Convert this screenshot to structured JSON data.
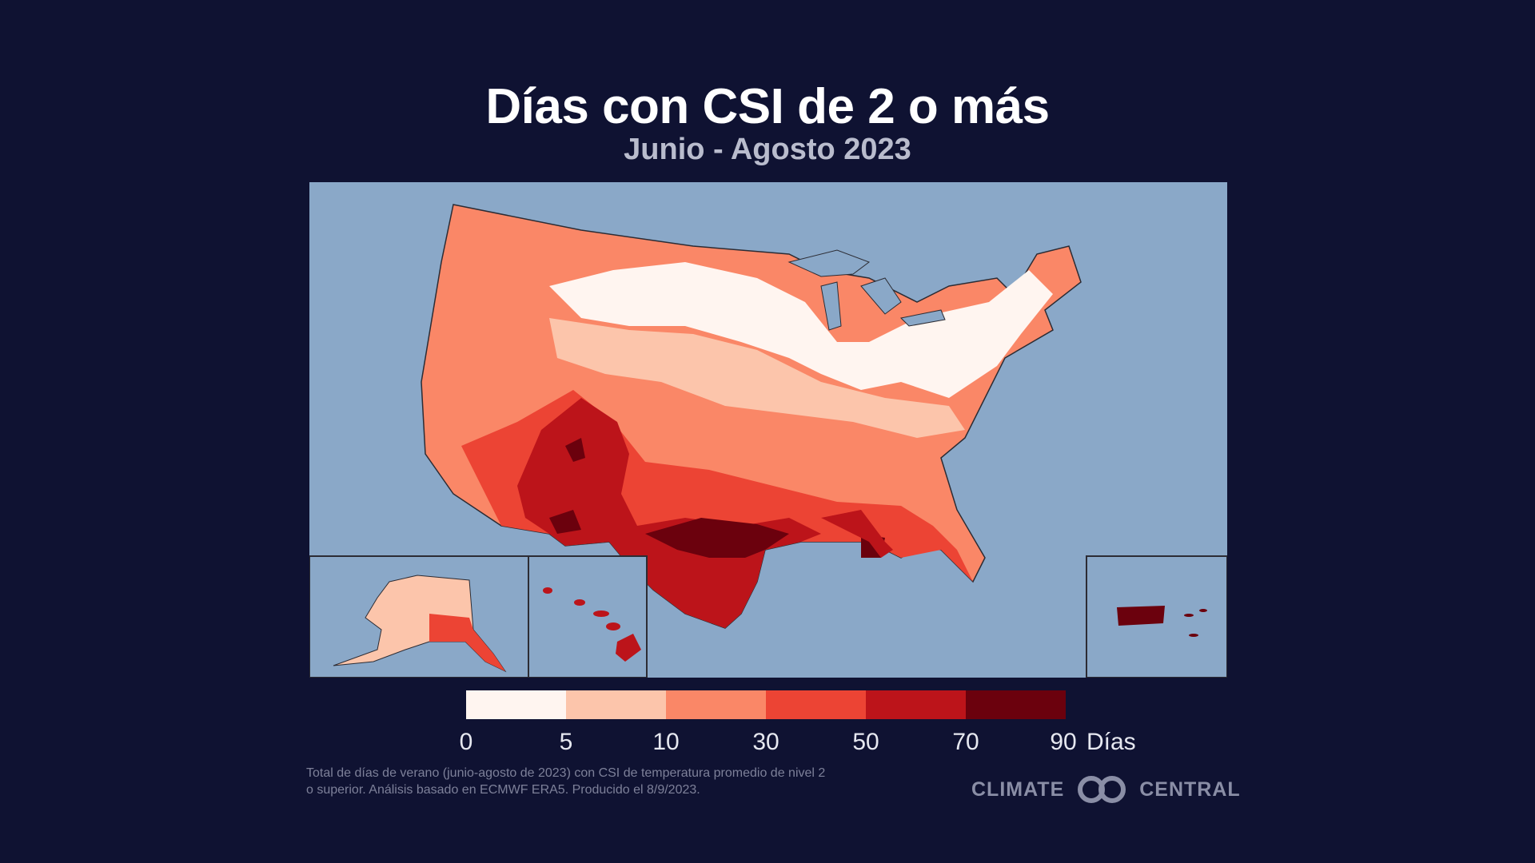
{
  "header": {
    "title": "Días con CSI de 2 o más",
    "subtitle": "Junio - Agosto 2023"
  },
  "map": {
    "regions": [
      "contiguous-us",
      "alaska",
      "hawaii",
      "puerto-rico"
    ],
    "background_color": "#8aa8c8",
    "border_color": "#2c2c34"
  },
  "legend": {
    "ticks": [
      "0",
      "5",
      "10",
      "30",
      "50",
      "70",
      "90"
    ],
    "unit": "Días",
    "colors": [
      "#fff5f0",
      "#fcc5ab",
      "#fa8767",
      "#ec4434",
      "#bc141a",
      "#6b010d"
    ]
  },
  "footnote": "Total de días de verano (junio-agosto de 2023) con CSI de temperatura promedio de nivel 2 o superior. Análisis basado en ECMWF ERA5. Producido el 8/9/2023.",
  "brand": {
    "left_word": "CLIMATE",
    "right_word": "CENTRAL",
    "logo_icon": "linked-rings-logo-icon"
  }
}
